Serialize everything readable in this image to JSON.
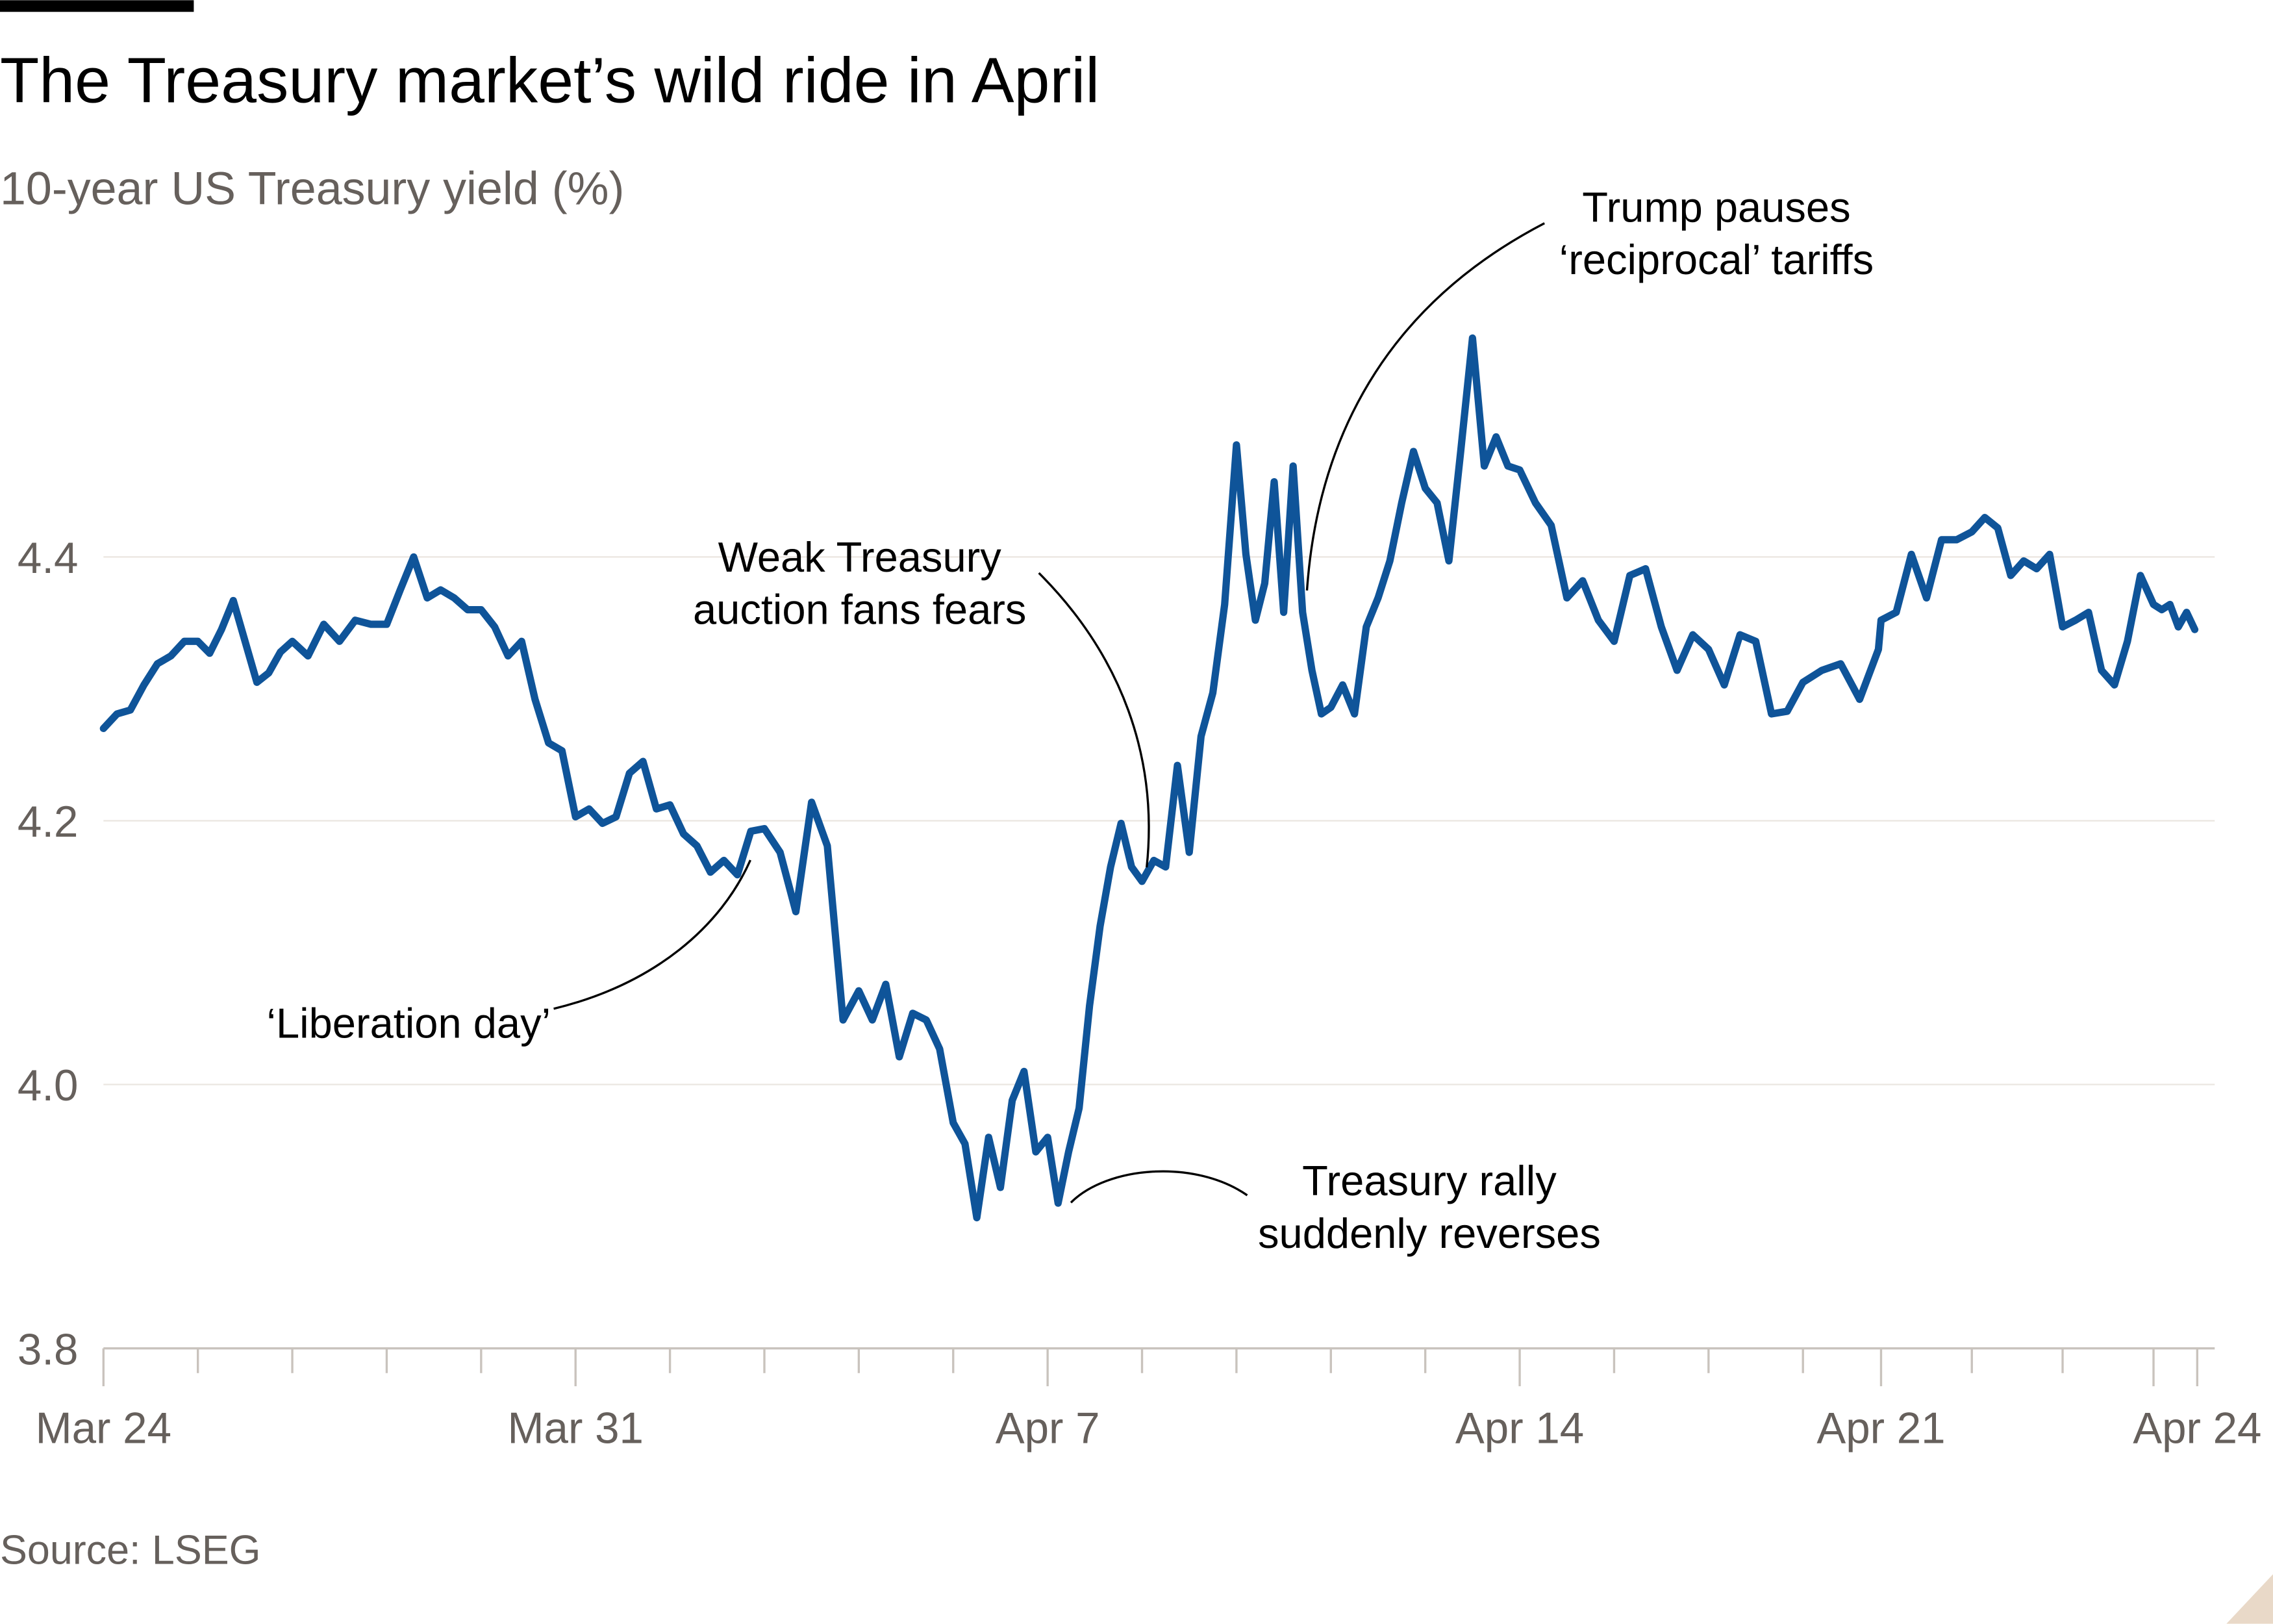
{
  "title": "The Treasury market’s wild ride in April",
  "subtitle": "10-year US Treasury yield (%)",
  "source": "Source: LSEG",
  "colors": {
    "line": "#0f5499",
    "grid": "#ebe6e0",
    "text_muted": "#66605c",
    "brand_bar": "#000000",
    "corner": "#e9d9c8"
  },
  "chart_data": {
    "type": "line",
    "title": "The Treasury market’s wild ride in April",
    "subtitle": "10-year US Treasury yield (%)",
    "xlabel": "",
    "ylabel": "",
    "ylim": [
      3.8,
      4.6
    ],
    "y_ticks": [
      "3.8",
      "4.0",
      "4.2",
      "4.4"
    ],
    "x_tick_labels": [
      "Mar 24",
      "Mar 31",
      "Apr 7",
      "Apr 14",
      "Apr 21",
      "Apr 24"
    ],
    "grid": "horizontal",
    "series": [
      {
        "sessions": [
          {
            "date": "Mar 24",
            "values": [
              4.27,
              4.281,
              4.284,
              4.303,
              4.319,
              4.325,
              4.336
            ]
          },
          {
            "date": "Mar 25",
            "values": [
              4.336,
              4.327,
              4.345,
              4.367,
              4.336,
              4.305,
              4.312,
              4.328
            ]
          },
          {
            "date": "Mar 26",
            "values": [
              4.336,
              4.325,
              4.349,
              4.336,
              4.352,
              4.349
            ]
          },
          {
            "date": "Mar 27",
            "values": [
              4.349,
              4.375,
              4.4,
              4.369,
              4.375,
              4.369,
              4.36
            ]
          },
          {
            "date": "Mar 28",
            "values": [
              4.36,
              4.347,
              4.325,
              4.336,
              4.292,
              4.259,
              4.253
            ]
          },
          {
            "date": "Mar 31",
            "values": [
              4.203,
              4.209,
              4.198,
              4.203,
              4.236,
              4.245,
              4.209
            ]
          },
          {
            "date": "Apr 1",
            "values": [
              4.212,
              4.19,
              4.181,
              4.161,
              4.17,
              4.159,
              4.192
            ]
          },
          {
            "date": "Apr 2",
            "values": [
              4.194,
              4.176,
              4.131,
              4.214,
              4.181,
              4.049
            ]
          },
          {
            "date": "Apr 3",
            "values": [
              4.071,
              4.049,
              4.076,
              4.021,
              4.054,
              4.049,
              4.027
            ]
          },
          {
            "date": "Apr 4",
            "values": [
              3.971,
              3.955,
              3.899,
              3.96,
              3.922,
              3.988,
              4.01,
              3.949
            ]
          },
          {
            "date": "Apr 7",
            "values": [
              3.96,
              3.91,
              3.949,
              3.982,
              4.06,
              4.12,
              4.165,
              4.198,
              4.165
            ]
          },
          {
            "date": "Apr 8",
            "values": [
              4.154,
              4.17,
              4.165,
              4.242,
              4.176,
              4.264,
              4.297,
              4.364
            ]
          },
          {
            "date": "Apr 9",
            "values": [
              4.485,
              4.402,
              4.352,
              4.38,
              4.457,
              4.358,
              4.469,
              4.358,
              4.314,
              4.281
            ]
          },
          {
            "date": "Apr 10",
            "values": [
              4.286,
              4.303,
              4.281,
              4.347,
              4.369,
              4.397,
              4.441,
              4.48
            ]
          },
          {
            "date": "Apr 11",
            "values": [
              4.452,
              4.441,
              4.397,
              4.48,
              4.566,
              4.469,
              4.491,
              4.469
            ]
          },
          {
            "date": "Apr 14",
            "values": [
              4.466,
              4.441,
              4.424,
              4.369,
              4.382,
              4.352
            ]
          },
          {
            "date": "Apr 15",
            "values": [
              4.336,
              4.386,
              4.391,
              4.347,
              4.314,
              4.341
            ]
          },
          {
            "date": "Apr 16",
            "values": [
              4.33,
              4.303,
              4.341,
              4.336,
              4.281,
              4.283
            ]
          },
          {
            "date": "Apr 17",
            "values": [
              4.305,
              4.314,
              4.319,
              4.292,
              4.33
            ]
          },
          {
            "date": "Apr 21",
            "values": [
              4.352,
              4.358,
              4.402,
              4.369,
              4.413,
              4.413
            ]
          },
          {
            "date": "Apr 22",
            "values": [
              4.419,
              4.43,
              4.422,
              4.386,
              4.397,
              4.391,
              4.402
            ]
          },
          {
            "date": "Apr 23",
            "values": [
              4.347,
              4.352,
              4.358,
              4.314,
              4.303,
              4.336,
              4.386
            ]
          },
          {
            "date": "Apr 24",
            "values": [
              4.364,
              4.36,
              4.364,
              4.347,
              4.358,
              4.345
            ]
          }
        ]
      }
    ],
    "annotations": [
      {
        "lines": [
          "Trump pauses",
          "‘reciprocal’ tariffs"
        ],
        "date": "Apr 9"
      },
      {
        "lines": [
          "Weak Treasury",
          "auction fans fears"
        ],
        "date": "Apr 8"
      },
      {
        "lines": [
          "‘Liberation day’"
        ],
        "date": "Apr 2"
      },
      {
        "lines": [
          "Treasury rally",
          "suddenly reverses"
        ],
        "date": "Apr 7"
      }
    ]
  }
}
